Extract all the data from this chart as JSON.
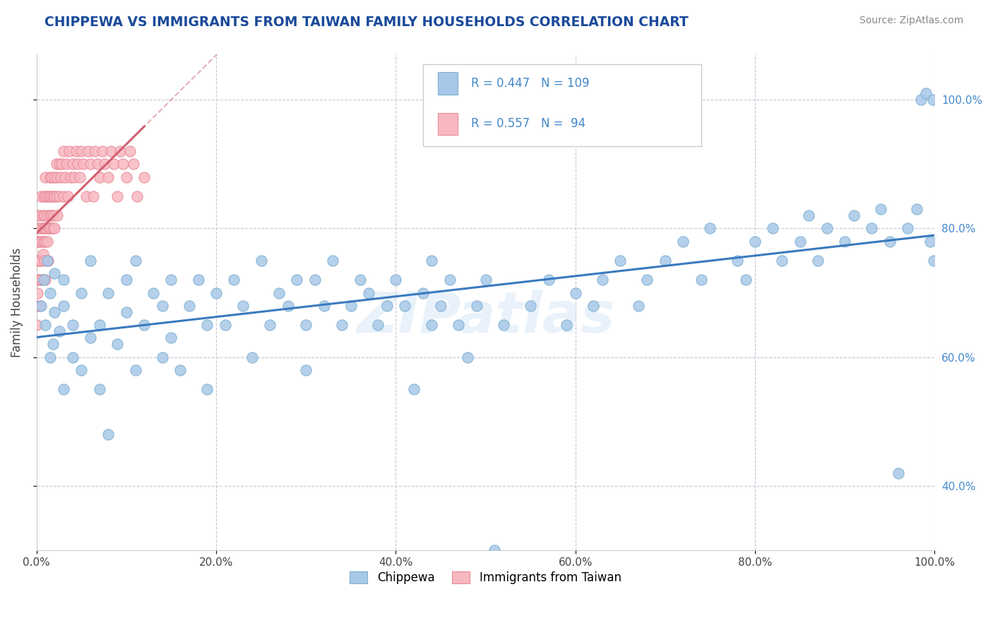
{
  "title": "CHIPPEWA VS IMMIGRANTS FROM TAIWAN FAMILY HOUSEHOLDS CORRELATION CHART",
  "source_text": "Source: ZipAtlas.com",
  "ylabel": "Family Households",
  "x_tick_labels": [
    "0.0%",
    "20.0%",
    "40.0%",
    "60.0%",
    "80.0%",
    "100.0%"
  ],
  "y_tick_labels": [
    "40.0%",
    "60.0%",
    "80.0%",
    "100.0%"
  ],
  "xlim": [
    0.0,
    1.0
  ],
  "ylim": [
    0.3,
    1.07
  ],
  "legend_label_blue": "Chippewa",
  "legend_label_pink": "Immigrants from Taiwan",
  "R_blue": "0.447",
  "N_blue": "109",
  "R_pink": "0.557",
  "N_pink": " 94",
  "blue_color": "#a8c8e8",
  "blue_edge": "#7aaed0",
  "pink_color": "#f8b8c0",
  "pink_edge": "#e88898",
  "trend_blue": "#3a7abf",
  "trend_pink": "#d06070",
  "watermark": "ZIPatlas",
  "title_color": "#1a4a9a",
  "tick_color": "#4488cc",
  "background_color": "#ffffff",
  "grid_color": "#c8c8d8",
  "blue_x": [
    0.005,
    0.008,
    0.01,
    0.012,
    0.015,
    0.015,
    0.018,
    0.02,
    0.02,
    0.025,
    0.03,
    0.03,
    0.03,
    0.04,
    0.04,
    0.05,
    0.05,
    0.06,
    0.06,
    0.07,
    0.07,
    0.08,
    0.08,
    0.09,
    0.1,
    0.1,
    0.11,
    0.11,
    0.12,
    0.13,
    0.14,
    0.14,
    0.15,
    0.15,
    0.16,
    0.17,
    0.18,
    0.19,
    0.19,
    0.2,
    0.21,
    0.22,
    0.23,
    0.24,
    0.25,
    0.26,
    0.27,
    0.28,
    0.29,
    0.3,
    0.3,
    0.31,
    0.32,
    0.33,
    0.34,
    0.35,
    0.36,
    0.37,
    0.38,
    0.39,
    0.4,
    0.41,
    0.42,
    0.43,
    0.44,
    0.44,
    0.45,
    0.46,
    0.47,
    0.48,
    0.49,
    0.5,
    0.51,
    0.52,
    0.55,
    0.57,
    0.59,
    0.6,
    0.62,
    0.63,
    0.65,
    0.67,
    0.68,
    0.7,
    0.72,
    0.74,
    0.75,
    0.78,
    0.79,
    0.8,
    0.82,
    0.83,
    0.85,
    0.86,
    0.87,
    0.88,
    0.9,
    0.91,
    0.93,
    0.94,
    0.95,
    0.96,
    0.97,
    0.98,
    0.985,
    0.99,
    0.995,
    0.998,
    0.999
  ],
  "blue_y": [
    0.68,
    0.72,
    0.65,
    0.75,
    0.6,
    0.7,
    0.62,
    0.67,
    0.73,
    0.64,
    0.55,
    0.68,
    0.72,
    0.6,
    0.65,
    0.7,
    0.58,
    0.63,
    0.75,
    0.65,
    0.55,
    0.7,
    0.48,
    0.62,
    0.67,
    0.72,
    0.58,
    0.75,
    0.65,
    0.7,
    0.6,
    0.68,
    0.63,
    0.72,
    0.58,
    0.68,
    0.72,
    0.65,
    0.55,
    0.7,
    0.65,
    0.72,
    0.68,
    0.6,
    0.75,
    0.65,
    0.7,
    0.68,
    0.72,
    0.65,
    0.58,
    0.72,
    0.68,
    0.75,
    0.65,
    0.68,
    0.72,
    0.7,
    0.65,
    0.68,
    0.72,
    0.68,
    0.55,
    0.7,
    0.65,
    0.75,
    0.68,
    0.72,
    0.65,
    0.6,
    0.68,
    0.72,
    0.3,
    0.65,
    0.68,
    0.72,
    0.65,
    0.7,
    0.68,
    0.72,
    0.75,
    0.68,
    0.72,
    0.75,
    0.78,
    0.72,
    0.8,
    0.75,
    0.72,
    0.78,
    0.8,
    0.75,
    0.78,
    0.82,
    0.75,
    0.8,
    0.78,
    0.82,
    0.8,
    0.83,
    0.78,
    0.42,
    0.8,
    0.83,
    1.0,
    1.01,
    0.78,
    1.0,
    0.75
  ],
  "pink_x": [
    0.0,
    0.0,
    0.0,
    0.0,
    0.001,
    0.001,
    0.001,
    0.002,
    0.002,
    0.002,
    0.003,
    0.003,
    0.003,
    0.004,
    0.004,
    0.005,
    0.005,
    0.005,
    0.006,
    0.006,
    0.007,
    0.007,
    0.007,
    0.008,
    0.008,
    0.009,
    0.009,
    0.009,
    0.01,
    0.01,
    0.01,
    0.01,
    0.01,
    0.012,
    0.012,
    0.012,
    0.013,
    0.013,
    0.014,
    0.014,
    0.015,
    0.015,
    0.016,
    0.016,
    0.017,
    0.017,
    0.018,
    0.018,
    0.019,
    0.02,
    0.02,
    0.02,
    0.022,
    0.022,
    0.023,
    0.023,
    0.025,
    0.025,
    0.027,
    0.028,
    0.03,
    0.03,
    0.032,
    0.033,
    0.035,
    0.036,
    0.038,
    0.04,
    0.042,
    0.044,
    0.046,
    0.048,
    0.05,
    0.052,
    0.055,
    0.058,
    0.06,
    0.063,
    0.065,
    0.068,
    0.07,
    0.073,
    0.076,
    0.08,
    0.083,
    0.086,
    0.09,
    0.093,
    0.096,
    0.1,
    0.104,
    0.108,
    0.112,
    0.12
  ],
  "pink_y": [
    0.68,
    0.72,
    0.65,
    0.78,
    0.75,
    0.82,
    0.7,
    0.78,
    0.72,
    0.8,
    0.75,
    0.68,
    0.82,
    0.78,
    0.72,
    0.8,
    0.75,
    0.85,
    0.72,
    0.78,
    0.82,
    0.76,
    0.8,
    0.85,
    0.78,
    0.8,
    0.75,
    0.82,
    0.85,
    0.78,
    0.8,
    0.72,
    0.88,
    0.82,
    0.78,
    0.85,
    0.8,
    0.75,
    0.85,
    0.8,
    0.88,
    0.82,
    0.85,
    0.8,
    0.88,
    0.82,
    0.85,
    0.8,
    0.82,
    0.88,
    0.85,
    0.8,
    0.9,
    0.85,
    0.88,
    0.82,
    0.9,
    0.85,
    0.88,
    0.9,
    0.85,
    0.92,
    0.88,
    0.9,
    0.85,
    0.92,
    0.88,
    0.9,
    0.88,
    0.92,
    0.9,
    0.88,
    0.92,
    0.9,
    0.85,
    0.92,
    0.9,
    0.85,
    0.92,
    0.9,
    0.88,
    0.92,
    0.9,
    0.88,
    0.92,
    0.9,
    0.85,
    0.92,
    0.9,
    0.88,
    0.92,
    0.9,
    0.85,
    0.88
  ]
}
